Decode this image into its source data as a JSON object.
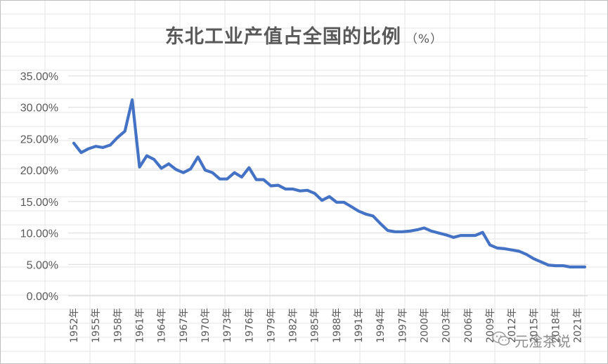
{
  "chart_data": {
    "type": "line",
    "title": "东北工业产值占全国的比例",
    "title_unit": "（%）",
    "ylim": [
      0,
      35
    ],
    "y_ticks": [
      "0.00%",
      "5.00%",
      "10.00%",
      "15.00%",
      "20.00%",
      "25.00%",
      "30.00%",
      "35.00%"
    ],
    "y_tick_values": [
      0,
      5,
      10,
      15,
      20,
      25,
      30,
      35
    ],
    "x_tick_labels": [
      "1952年",
      "1955年",
      "1958年",
      "1961年",
      "1964年",
      "1967年",
      "1970年",
      "1973年",
      "1976年",
      "1979年",
      "1982年",
      "1985年",
      "1988年",
      "1991年",
      "1994年",
      "1997年",
      "2000年",
      "2003年",
      "2006年",
      "2009年",
      "2012年",
      "2015年",
      "2018年",
      "2021年"
    ],
    "x_tick_years": [
      1952,
      1955,
      1958,
      1961,
      1964,
      1967,
      1970,
      1973,
      1976,
      1979,
      1982,
      1985,
      1988,
      1991,
      1994,
      1997,
      2000,
      2003,
      2006,
      2009,
      2012,
      2015,
      2018,
      2021
    ],
    "grid": true,
    "legend": "none",
    "series": [
      {
        "color": "#4472c4",
        "x": [
          1952,
          1953,
          1954,
          1955,
          1956,
          1957,
          1958,
          1959,
          1960,
          1961,
          1962,
          1963,
          1964,
          1965,
          1966,
          1967,
          1968,
          1969,
          1970,
          1971,
          1972,
          1973,
          1974,
          1975,
          1976,
          1977,
          1978,
          1979,
          1980,
          1981,
          1982,
          1983,
          1984,
          1985,
          1986,
          1987,
          1988,
          1989,
          1990,
          1991,
          1992,
          1993,
          1994,
          1995,
          1996,
          1997,
          1998,
          1999,
          2000,
          2001,
          2002,
          2003,
          2004,
          2005,
          2006,
          2007,
          2008,
          2009,
          2010,
          2011,
          2012,
          2013,
          2014,
          2015,
          2016,
          2017,
          2018,
          2019,
          2020,
          2021,
          2022
        ],
        "values": [
          24.3,
          22.8,
          23.4,
          23.8,
          23.6,
          24.0,
          25.2,
          26.2,
          31.2,
          20.5,
          22.3,
          21.7,
          20.3,
          21.0,
          20.1,
          19.6,
          20.2,
          22.1,
          20.0,
          19.6,
          18.6,
          18.6,
          19.6,
          18.9,
          20.4,
          18.5,
          18.5,
          17.5,
          17.6,
          17.0,
          17.0,
          16.7,
          16.8,
          16.3,
          15.2,
          15.8,
          14.9,
          14.9,
          14.2,
          13.5,
          13.0,
          12.7,
          11.5,
          10.4,
          10.2,
          10.2,
          10.3,
          10.5,
          10.8,
          10.3,
          10.0,
          9.7,
          9.3,
          9.6,
          9.6,
          9.6,
          10.1,
          8.1,
          7.6,
          7.5,
          7.3,
          7.1,
          6.6,
          5.9,
          5.4,
          4.9,
          4.8,
          4.8,
          4.6,
          4.6,
          4.6
        ]
      }
    ]
  },
  "watermark": {
    "text": "元淦茶说",
    "icon": "wechat-icon"
  }
}
